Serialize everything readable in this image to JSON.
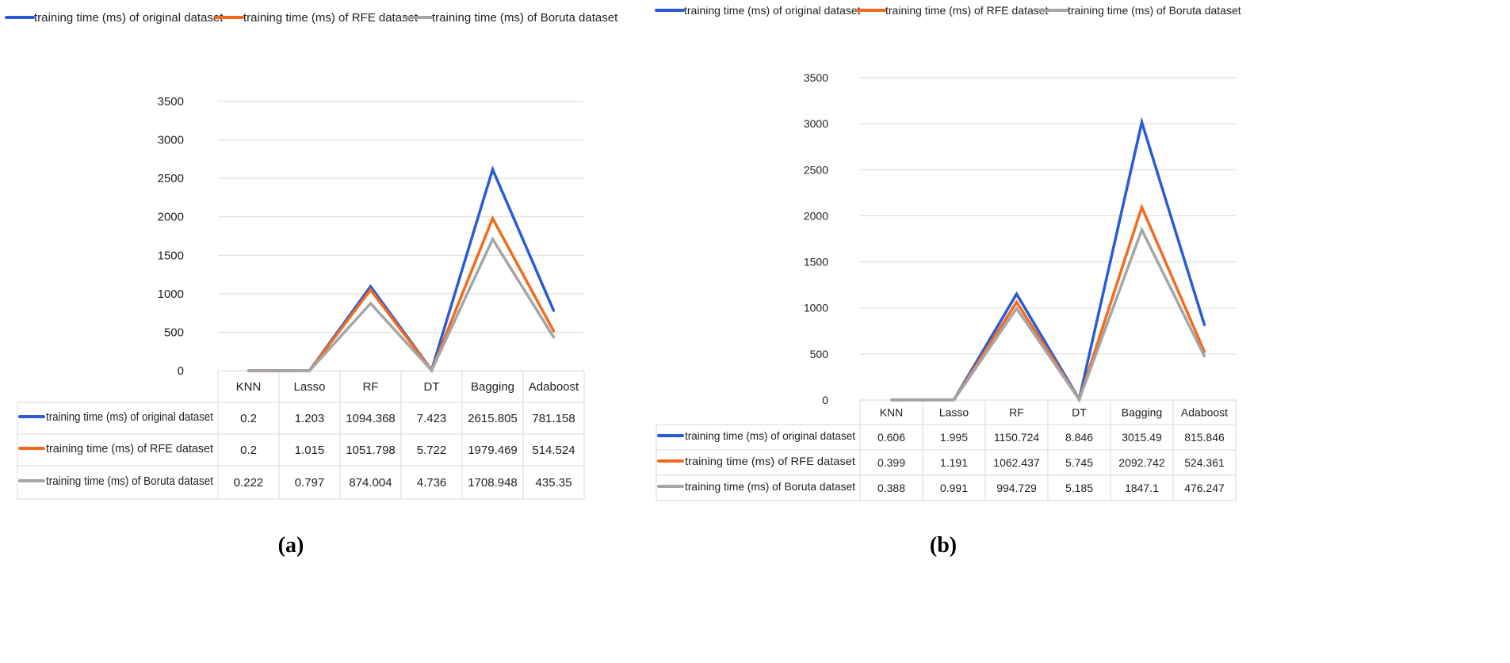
{
  "figure": {
    "panels": [
      {
        "label": "(a)"
      },
      {
        "label": "(b)"
      }
    ]
  },
  "colors": {
    "series": [
      "#2a5bd7",
      "#f26b1d",
      "#a5a5a5"
    ],
    "grid": "#d9d9d9",
    "text": "#222222"
  },
  "chart_data": [
    {
      "type": "line",
      "panel": "(a)",
      "categories": [
        "KNN",
        "Lasso",
        "RF",
        "DT",
        "Bagging",
        "Adaboost"
      ],
      "ylim": [
        0,
        3500
      ],
      "yticks": [
        0,
        500,
        1000,
        1500,
        2000,
        2500,
        3000,
        3500
      ],
      "legend_position": "top-left",
      "series": [
        {
          "name": "training time (ms) of  original dataset",
          "values": [
            0.2,
            1.203,
            1094.368,
            7.423,
            2615.805,
            781.158
          ],
          "labels": [
            "0.2",
            "1.203",
            "1094.368",
            "7.423",
            "2615.805",
            "781.158"
          ]
        },
        {
          "name": "training time (ms) of  RFE dataset",
          "values": [
            0.2,
            1.015,
            1051.798,
            5.722,
            1979.469,
            514.524
          ],
          "labels": [
            "0.2",
            "1.015",
            "1051.798",
            "5.722",
            "1979.469",
            "514.524"
          ]
        },
        {
          "name": "training time (ms) of  Boruta dataset",
          "values": [
            0.222,
            0.797,
            874.004,
            4.736,
            1708.948,
            435.35
          ],
          "labels": [
            "0.222",
            "0.797",
            "874.004",
            "4.736",
            "1708.948",
            "435.35"
          ]
        }
      ]
    },
    {
      "type": "line",
      "panel": "(b)",
      "categories": [
        "KNN",
        "Lasso",
        "RF",
        "DT",
        "Bagging",
        "Adaboost"
      ],
      "ylim": [
        0,
        3500
      ],
      "yticks": [
        0,
        500,
        1000,
        1500,
        2000,
        2500,
        3000,
        3500
      ],
      "legend_position": "top",
      "series": [
        {
          "name": "training time (ms) of original dataset",
          "values": [
            0.606,
            1.995,
            1150.724,
            8.846,
            3015.49,
            815.846
          ],
          "labels": [
            "0.606",
            "1.995",
            "1150.724",
            "8.846",
            "3015.49",
            "815.846"
          ]
        },
        {
          "name": "training time (ms) of RFE dataset",
          "values": [
            0.399,
            1.191,
            1062.437,
            5.745,
            2092.742,
            524.361
          ],
          "labels": [
            "0.399",
            "1.191",
            "1062.437",
            "5.745",
            "2092.742",
            "524.361"
          ]
        },
        {
          "name": "training time (ms) of Boruta dataset",
          "values": [
            0.388,
            0.991,
            994.729,
            5.185,
            1847.1,
            476.247
          ],
          "labels": [
            "0.388",
            "0.991",
            "994.729",
            "5.185",
            "1847.1",
            "476.247"
          ]
        }
      ]
    }
  ]
}
